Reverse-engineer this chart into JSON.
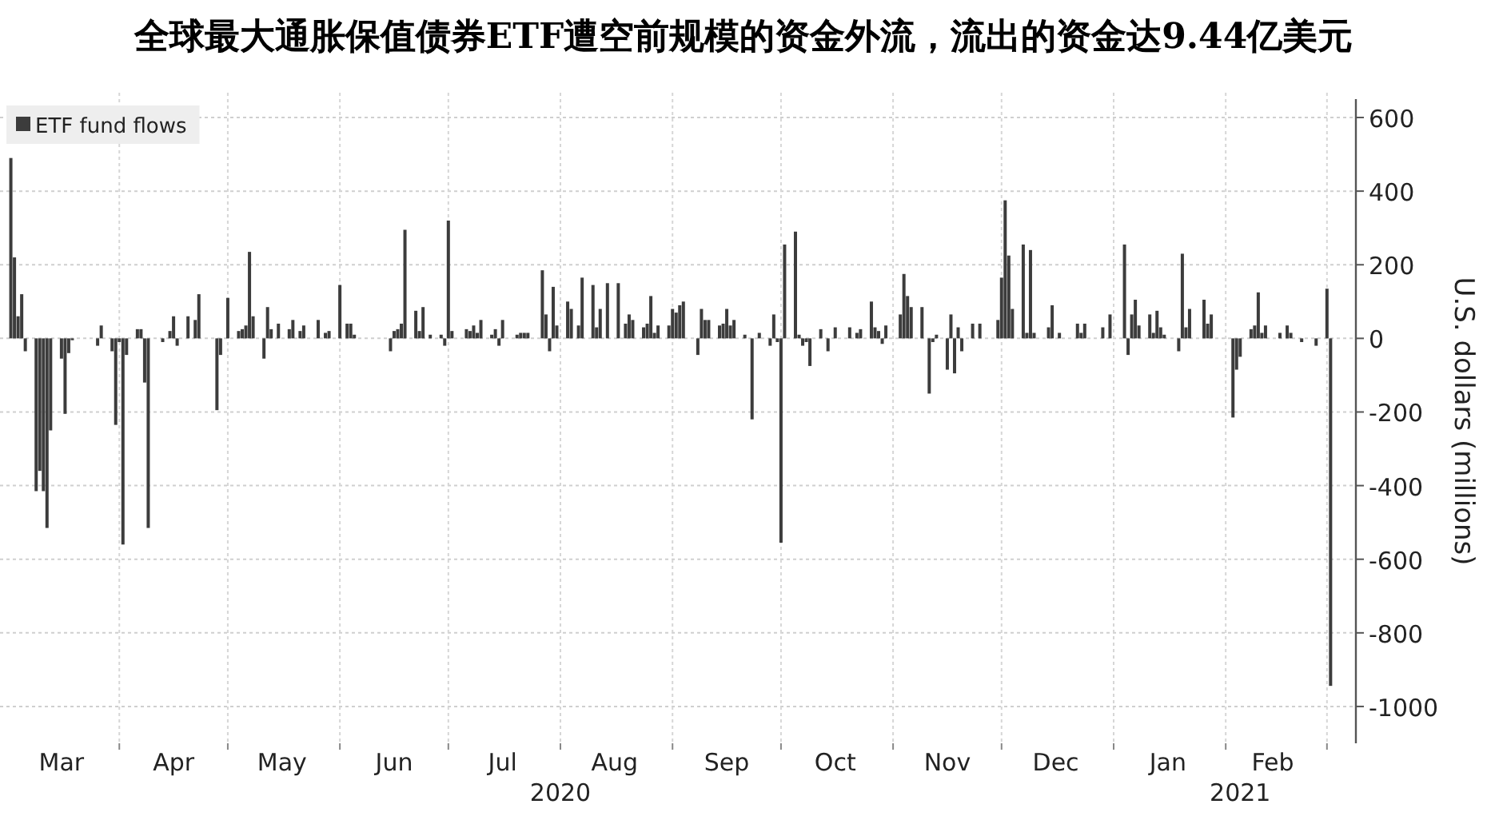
{
  "chart_data": {
    "type": "bar",
    "title": "全球最大通胀保值债券ETF遭空前规模的资金外流，流出的资金达9.44亿美元",
    "ylabel": "U.S. dollars (millions)",
    "x": [
      "2020-03-02",
      "2020-03-03",
      "2020-03-04",
      "2020-03-05",
      "2020-03-06",
      "2020-03-09",
      "2020-03-10",
      "2020-03-11",
      "2020-03-12",
      "2020-03-13",
      "2020-03-16",
      "2020-03-17",
      "2020-03-18",
      "2020-03-19",
      "2020-03-26",
      "2020-03-27",
      "2020-03-30",
      "2020-03-31",
      "2020-04-01",
      "2020-04-02",
      "2020-04-03",
      "2020-04-06",
      "2020-04-07",
      "2020-04-08",
      "2020-04-09",
      "2020-04-13",
      "2020-04-15",
      "2020-04-16",
      "2020-04-17",
      "2020-04-20",
      "2020-04-22",
      "2020-04-23",
      "2020-04-28",
      "2020-04-29",
      "2020-05-01",
      "2020-05-04",
      "2020-05-05",
      "2020-05-06",
      "2020-05-07",
      "2020-05-08",
      "2020-05-11",
      "2020-05-12",
      "2020-05-13",
      "2020-05-15",
      "2020-05-18",
      "2020-05-19",
      "2020-05-21",
      "2020-05-22",
      "2020-05-26",
      "2020-05-28",
      "2020-05-29",
      "2020-06-01",
      "2020-06-03",
      "2020-06-04",
      "2020-06-05",
      "2020-06-15",
      "2020-06-16",
      "2020-06-17",
      "2020-06-18",
      "2020-06-19",
      "2020-06-22",
      "2020-06-23",
      "2020-06-24",
      "2020-06-26",
      "2020-06-29",
      "2020-06-30",
      "2020-07-01",
      "2020-07-02",
      "2020-07-06",
      "2020-07-07",
      "2020-07-08",
      "2020-07-09",
      "2020-07-10",
      "2020-07-13",
      "2020-07-14",
      "2020-07-15",
      "2020-07-16",
      "2020-07-20",
      "2020-07-21",
      "2020-07-22",
      "2020-07-23",
      "2020-07-27",
      "2020-07-28",
      "2020-07-29",
      "2020-07-30",
      "2020-07-31",
      "2020-08-03",
      "2020-08-04",
      "2020-08-06",
      "2020-08-07",
      "2020-08-10",
      "2020-08-11",
      "2020-08-12",
      "2020-08-14",
      "2020-08-17",
      "2020-08-19",
      "2020-08-20",
      "2020-08-21",
      "2020-08-24",
      "2020-08-25",
      "2020-08-26",
      "2020-08-27",
      "2020-08-28",
      "2020-08-31",
      "2020-09-01",
      "2020-09-02",
      "2020-09-03",
      "2020-09-04",
      "2020-09-08",
      "2020-09-09",
      "2020-09-10",
      "2020-09-11",
      "2020-09-14",
      "2020-09-15",
      "2020-09-16",
      "2020-09-17",
      "2020-09-18",
      "2020-09-21",
      "2020-09-23",
      "2020-09-25",
      "2020-09-28",
      "2020-09-29",
      "2020-09-30",
      "2020-10-01",
      "2020-10-02",
      "2020-10-05",
      "2020-10-06",
      "2020-10-07",
      "2020-10-08",
      "2020-10-09",
      "2020-10-12",
      "2020-10-14",
      "2020-10-16",
      "2020-10-20",
      "2020-10-22",
      "2020-10-23",
      "2020-10-26",
      "2020-10-27",
      "2020-10-28",
      "2020-10-29",
      "2020-10-30",
      "2020-11-03",
      "2020-11-04",
      "2020-11-05",
      "2020-11-06",
      "2020-11-09",
      "2020-11-11",
      "2020-11-12",
      "2020-11-13",
      "2020-11-16",
      "2020-11-17",
      "2020-11-18",
      "2020-11-19",
      "2020-11-20",
      "2020-11-23",
      "2020-11-25",
      "2020-11-30",
      "2020-12-01",
      "2020-12-02",
      "2020-12-03",
      "2020-12-04",
      "2020-12-07",
      "2020-12-08",
      "2020-12-09",
      "2020-12-10",
      "2020-12-14",
      "2020-12-15",
      "2020-12-17",
      "2020-12-22",
      "2020-12-23",
      "2020-12-24",
      "2020-12-29",
      "2020-12-31",
      "2021-01-04",
      "2021-01-05",
      "2021-01-06",
      "2021-01-07",
      "2021-01-08",
      "2021-01-11",
      "2021-01-12",
      "2021-01-13",
      "2021-01-14",
      "2021-01-15",
      "2021-01-19",
      "2021-01-20",
      "2021-01-21",
      "2021-01-22",
      "2021-01-26",
      "2021-01-27",
      "2021-01-28",
      "2021-02-03",
      "2021-02-04",
      "2021-02-05",
      "2021-02-08",
      "2021-02-09",
      "2021-02-10",
      "2021-02-11",
      "2021-02-12",
      "2021-02-16",
      "2021-02-18",
      "2021-02-19",
      "2021-02-22",
      "2021-02-26",
      "2021-03-01",
      "2021-03-02"
    ],
    "series": [
      {
        "name": "ETF fund flows",
        "color": "#3c3c3c",
        "values": [
          490,
          220,
          60,
          120,
          -35,
          -415,
          -360,
          -415,
          -515,
          -250,
          -55,
          -205,
          -40,
          -5,
          -20,
          35,
          -35,
          -235,
          -10,
          -560,
          -45,
          25,
          25,
          -120,
          -515,
          -10,
          20,
          60,
          -20,
          60,
          50,
          120,
          -195,
          -45,
          110,
          20,
          25,
          35,
          235,
          60,
          -55,
          85,
          25,
          40,
          25,
          50,
          20,
          35,
          50,
          15,
          20,
          145,
          40,
          40,
          10,
          -35,
          20,
          25,
          40,
          295,
          75,
          20,
          85,
          10,
          10,
          -20,
          320,
          20,
          25,
          20,
          35,
          15,
          50,
          10,
          25,
          -20,
          50,
          10,
          15,
          15,
          15,
          185,
          65,
          -35,
          140,
          35,
          100,
          80,
          35,
          165,
          145,
          30,
          80,
          150,
          150,
          40,
          65,
          50,
          30,
          40,
          115,
          15,
          35,
          35,
          80,
          70,
          90,
          100,
          -45,
          80,
          50,
          50,
          35,
          40,
          80,
          35,
          50,
          10,
          -220,
          15,
          -20,
          65,
          -10,
          -555,
          255,
          290,
          10,
          -20,
          -10,
          -75,
          25,
          -35,
          30,
          30,
          15,
          25,
          100,
          30,
          20,
          -15,
          35,
          65,
          175,
          115,
          85,
          85,
          -150,
          -10,
          10,
          -85,
          65,
          -95,
          30,
          -35,
          40,
          40,
          50,
          165,
          375,
          225,
          80,
          255,
          15,
          240,
          15,
          30,
          90,
          15,
          40,
          15,
          40,
          30,
          65,
          255,
          -45,
          65,
          105,
          35,
          65,
          15,
          75,
          30,
          10,
          -35,
          230,
          30,
          80,
          105,
          40,
          65,
          -215,
          -85,
          -50,
          25,
          35,
          125,
          15,
          35,
          15,
          35,
          15,
          -10,
          -20,
          135,
          -944
        ]
      }
    ],
    "xlim": [
      "2020-02-28",
      "2021-03-09"
    ],
    "xticks": [
      {
        "value": "2020-03-16",
        "label": "Mar"
      },
      {
        "value": "2020-04-01",
        "label": null
      },
      {
        "value": "2020-04-16",
        "label": "Apr"
      },
      {
        "value": "2020-05-01",
        "label": null
      },
      {
        "value": "2020-05-16",
        "label": "May"
      },
      {
        "value": "2020-06-01",
        "label": null
      },
      {
        "value": "2020-06-16",
        "label": "Jun"
      },
      {
        "value": "2020-07-01",
        "label": null
      },
      {
        "value": "2020-07-16",
        "label": "Jul"
      },
      {
        "value": "2020-08-01",
        "label": null
      },
      {
        "value": "2020-08-16",
        "label": "Aug"
      },
      {
        "value": "2020-09-01",
        "label": null
      },
      {
        "value": "2020-09-16",
        "label": "Sep"
      },
      {
        "value": "2020-10-01",
        "label": null
      },
      {
        "value": "2020-10-16",
        "label": "Oct"
      },
      {
        "value": "2020-11-01",
        "label": null
      },
      {
        "value": "2020-11-16",
        "label": "Nov"
      },
      {
        "value": "2020-12-01",
        "label": null
      },
      {
        "value": "2020-12-16",
        "label": "Dec"
      },
      {
        "value": "2021-01-01",
        "label": null
      },
      {
        "value": "2021-01-16",
        "label": "Jan"
      },
      {
        "value": "2021-02-01",
        "label": null
      },
      {
        "value": "2021-02-14",
        "label": "Feb"
      },
      {
        "value": "2021-03-01",
        "label": null
      }
    ],
    "x2lim": [
      "2020-02-28",
      "2021-03-09"
    ],
    "x2ticks": [
      {
        "value": "2020-08-01",
        "label": "2020"
      },
      {
        "value": "2021-02-05",
        "label": "2021"
      }
    ],
    "ylim": [
      -1100,
      650
    ],
    "yticks": [
      -1000,
      -800,
      -600,
      -400,
      -200,
      0,
      200,
      400,
      600
    ],
    "grid": true,
    "legend": "top left"
  }
}
